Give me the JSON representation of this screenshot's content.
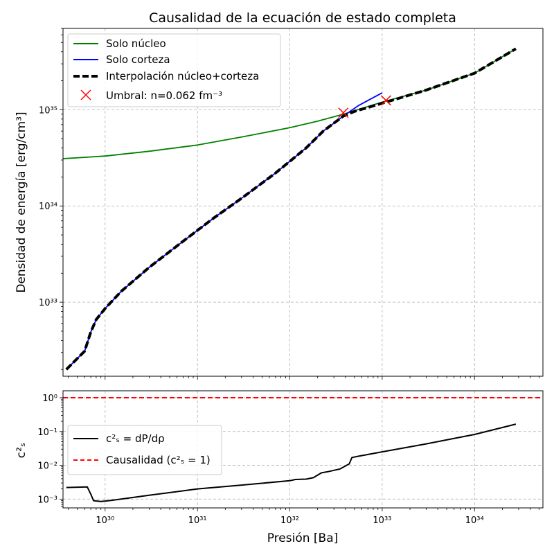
{
  "chart_data": [
    {
      "type": "line",
      "title": "Causalidad de la ecuación de estado completa",
      "xlabel": "",
      "ylabel": "Densidad de energía [erg/cm³]",
      "xscale": "log",
      "yscale": "log",
      "xlim": [
        3.5e+29,
        5.5e+34
      ],
      "ylim": [
        1.7e+32,
        7e+35
      ],
      "grid": true,
      "legend_location": "upper-left",
      "y_ticks": [
        "10³³",
        "10³⁴",
        "10³⁵"
      ],
      "series": [
        {
          "name": "Solo núcleo",
          "color": "#008000",
          "style": "solid",
          "points": [
            [
              3.5e+29,
              3.1e+34
            ],
            [
              1e+30,
              3.3e+34
            ],
            [
              3e+30,
              3.7e+34
            ],
            [
              1e+31,
              4.3e+34
            ],
            [
              3e+31,
              5.2e+34
            ],
            [
              1e+32,
              6.5e+34
            ],
            [
              2e+32,
              7.6e+34
            ],
            [
              3.8e+32,
              9e+34
            ],
            [
              1e+33,
              1.2e+35
            ],
            [
              3e+33,
              1.6e+35
            ],
            [
              1e+34,
              2.4e+35
            ],
            [
              2.8e+34,
              4.3e+35
            ]
          ]
        },
        {
          "name": "Solo corteza",
          "color": "#0000ff",
          "style": "solid",
          "points": [
            [
              3.8e+29,
              2e+32
            ],
            [
              6e+29,
              3.1e+32
            ],
            [
              7e+29,
              4.9e+32
            ],
            [
              8e+29,
              6.6e+32
            ],
            [
              1e+30,
              8.6e+32
            ],
            [
              1.5e+30,
              1.3e+33
            ],
            [
              3e+30,
              2.3e+33
            ],
            [
              7e+30,
              4.3e+33
            ],
            [
              1.5e+31,
              7.5e+33
            ],
            [
              3e+31,
              1.2e+34
            ],
            [
              7e+31,
              2.2e+34
            ],
            [
              1.5e+32,
              4e+34
            ],
            [
              2.3e+32,
              6e+34
            ],
            [
              3.8e+32,
              8.6e+34
            ],
            [
              5.5e+32,
              1.1e+35
            ],
            [
              1e+33,
              1.5e+35
            ]
          ]
        },
        {
          "name": "Interpolación núcleo+corteza",
          "color": "#000000",
          "style": "dashed",
          "points": [
            [
              3.8e+29,
              2e+32
            ],
            [
              6e+29,
              3.1e+32
            ],
            [
              7e+29,
              4.9e+32
            ],
            [
              8e+29,
              6.6e+32
            ],
            [
              1e+30,
              8.6e+32
            ],
            [
              1.5e+30,
              1.3e+33
            ],
            [
              3e+30,
              2.3e+33
            ],
            [
              7e+30,
              4.3e+33
            ],
            [
              1.5e+31,
              7.5e+33
            ],
            [
              3e+31,
              1.2e+34
            ],
            [
              7e+31,
              2.2e+34
            ],
            [
              1.5e+32,
              4e+34
            ],
            [
              2.3e+32,
              6e+34
            ],
            [
              3.8e+32,
              8.6e+34
            ],
            [
              5e+32,
              9.6e+34
            ],
            [
              1.1e+33,
              1.2e+35
            ],
            [
              3e+33,
              1.6e+35
            ],
            [
              1e+34,
              2.4e+35
            ],
            [
              2.8e+34,
              4.3e+35
            ]
          ]
        }
      ],
      "markers": {
        "name": "Umbral: n=0.062 fm⁻³",
        "color": "#ff0000",
        "points": [
          [
            3.8e+32,
            9.3e+34
          ],
          [
            1.1e+33,
            1.25e+35
          ]
        ]
      }
    },
    {
      "type": "line",
      "title": "",
      "xlabel": "Presión [Ba]",
      "ylabel": "c²ₛ",
      "xscale": "log",
      "yscale": "log",
      "xlim": [
        3.5e+29,
        5.5e+34
      ],
      "ylim": [
        0.00055,
        1.6
      ],
      "grid": true,
      "legend_location": "center-left",
      "x_ticks": [
        "10³⁰",
        "10³¹",
        "10³²",
        "10³³",
        "10³⁴"
      ],
      "y_ticks": [
        "10⁻³",
        "10⁻²",
        "10⁻¹",
        "10⁰"
      ],
      "series": [
        {
          "name": "c²ₛ = dP/dρ",
          "color": "#000000",
          "style": "solid",
          "points": [
            [
              3.8e+29,
              0.0022
            ],
            [
              6.4e+29,
              0.0023
            ],
            [
              7e+29,
              0.0014
            ],
            [
              7.5e+29,
              0.0009
            ],
            [
              9e+29,
              0.00085
            ],
            [
              1.1e+30,
              0.0009
            ],
            [
              1.5e+30,
              0.001
            ],
            [
              3e+30,
              0.0013
            ],
            [
              1e+31,
              0.002
            ],
            [
              3e+31,
              0.0026
            ],
            [
              1e+32,
              0.0035
            ],
            [
              1.15e+32,
              0.0038
            ],
            [
              1.5e+32,
              0.0039
            ],
            [
              1.8e+32,
              0.0043
            ],
            [
              2.2e+32,
              0.006
            ],
            [
              2.6e+32,
              0.0065
            ],
            [
              3.5e+32,
              0.0078
            ],
            [
              4.4e+32,
              0.011
            ],
            [
              4.7e+32,
              0.017
            ],
            [
              5.5e+32,
              0.0185
            ],
            [
              1e+33,
              0.025
            ],
            [
              3e+33,
              0.043
            ],
            [
              1e+34,
              0.082
            ],
            [
              2.8e+34,
              0.165
            ]
          ]
        },
        {
          "name": "Causalidad (c²ₛ = 1)",
          "color": "#ff0000",
          "style": "dashed",
          "points": [
            [
              3.5e+29,
              1.0
            ],
            [
              5.5e+34,
              1.0
            ]
          ]
        }
      ]
    }
  ]
}
